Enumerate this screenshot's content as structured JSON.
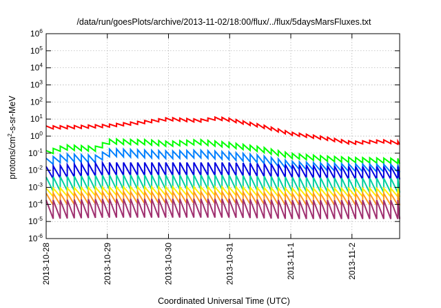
{
  "chart_data": {
    "type": "line",
    "title": "/data/run/goesPlots/archive/2013-11-02/18:00/flux/../flux/5daysMarsFluxes.txt",
    "xlabel": "Coordinated Universal Time (UTC)",
    "ylabel": {
      "prefix": "protons/cm",
      "exponent": "2",
      "suffix": "-s-sr-MeV"
    },
    "yscale": "log",
    "ylim_exp": [
      -6,
      6
    ],
    "y_ticks": [
      {
        "base": "10",
        "exp": "-6"
      },
      {
        "base": "10",
        "exp": "-5"
      },
      {
        "base": "10",
        "exp": "-4"
      },
      {
        "base": "10",
        "exp": "-3"
      },
      {
        "base": "10",
        "exp": "-2"
      },
      {
        "base": "10",
        "exp": "-1"
      },
      {
        "base": "10",
        "exp": "0"
      },
      {
        "base": "10",
        "exp": "1"
      },
      {
        "base": "10",
        "exp": "2"
      },
      {
        "base": "10",
        "exp": "3"
      },
      {
        "base": "10",
        "exp": "4"
      },
      {
        "base": "10",
        "exp": "5"
      },
      {
        "base": "10",
        "exp": "6"
      }
    ],
    "x_ticks": [
      "2013-10-28",
      "2013-10-29",
      "2013-10-30",
      "2013-10-31",
      "2013-11-1",
      "2013-11-2"
    ],
    "x_range_days": [
      0,
      5.78
    ],
    "grid": true,
    "sawtooth_period_days": 0.115,
    "series": [
      {
        "color": "#ff0000",
        "points": [
          [
            0,
            3.2
          ],
          [
            0.5,
            3.4
          ],
          [
            1.0,
            4.0
          ],
          [
            1.5,
            6.0
          ],
          [
            2.0,
            10.0
          ],
          [
            2.5,
            8.0
          ],
          [
            2.8,
            11.0
          ],
          [
            3.0,
            9.0
          ],
          [
            3.5,
            4.0
          ],
          [
            4.0,
            1.4
          ],
          [
            4.5,
            0.8
          ],
          [
            5.0,
            0.4
          ],
          [
            5.5,
            0.5
          ],
          [
            5.78,
            0.4
          ]
        ],
        "amp": 0.18
      },
      {
        "color": "#00ff00",
        "points": [
          [
            0,
            0.1
          ],
          [
            0.3,
            0.22
          ],
          [
            0.8,
            0.18
          ],
          [
            1.05,
            0.5
          ],
          [
            1.3,
            0.45
          ],
          [
            1.6,
            0.45
          ],
          [
            2.0,
            0.35
          ],
          [
            2.5,
            0.45
          ],
          [
            3.0,
            0.3
          ],
          [
            3.5,
            0.17
          ],
          [
            4.0,
            0.07
          ],
          [
            4.5,
            0.05
          ],
          [
            5.0,
            0.04
          ],
          [
            5.78,
            0.035
          ]
        ],
        "amp": 0.3
      },
      {
        "color": "#0080ff",
        "points": [
          [
            0,
            0.03
          ],
          [
            0.3,
            0.055
          ],
          [
            0.8,
            0.045
          ],
          [
            1.05,
            0.11
          ],
          [
            2.0,
            0.08
          ],
          [
            2.5,
            0.09
          ],
          [
            3.0,
            0.07
          ],
          [
            3.5,
            0.045
          ],
          [
            4.0,
            0.02
          ],
          [
            4.5,
            0.016
          ],
          [
            5.0,
            0.014
          ],
          [
            5.78,
            0.013
          ]
        ],
        "amp": 0.45
      },
      {
        "color": "#0000e0",
        "points": [
          [
            0,
            0.007
          ],
          [
            0.5,
            0.01
          ],
          [
            1.0,
            0.012
          ],
          [
            2.0,
            0.012
          ],
          [
            3.0,
            0.012
          ],
          [
            4.0,
            0.009
          ],
          [
            5.0,
            0.007
          ],
          [
            5.78,
            0.007
          ]
        ],
        "amp": 0.75
      },
      {
        "color": "#00d0a0",
        "points": [
          [
            0,
            0.0015
          ],
          [
            1.0,
            0.002
          ],
          [
            2.0,
            0.002
          ],
          [
            3.0,
            0.002
          ],
          [
            4.0,
            0.0015
          ],
          [
            5.0,
            0.0013
          ],
          [
            5.78,
            0.0013
          ]
        ],
        "amp": 0.85
      },
      {
        "color": "#ffee00",
        "points": [
          [
            0,
            0.0005
          ],
          [
            1.0,
            0.0006
          ],
          [
            2.0,
            0.0006
          ],
          [
            3.0,
            0.0006
          ],
          [
            4.0,
            0.0005
          ],
          [
            5.78,
            0.0005
          ]
        ],
        "amp": 0.5
      },
      {
        "color": "#ff9a20",
        "points": [
          [
            0,
            0.0002
          ],
          [
            1.0,
            0.00025
          ],
          [
            2.0,
            0.00025
          ],
          [
            3.0,
            0.00025
          ],
          [
            4.0,
            0.0002
          ],
          [
            5.78,
            0.0002
          ]
        ],
        "amp": 0.7
      },
      {
        "color": "#a03070",
        "points": [
          [
            0,
            5e-05
          ],
          [
            1.0,
            6e-05
          ],
          [
            2.0,
            6e-05
          ],
          [
            3.0,
            6e-05
          ],
          [
            4.0,
            5e-05
          ],
          [
            5.78,
            5e-05
          ]
        ],
        "amp": 1.1
      }
    ]
  }
}
